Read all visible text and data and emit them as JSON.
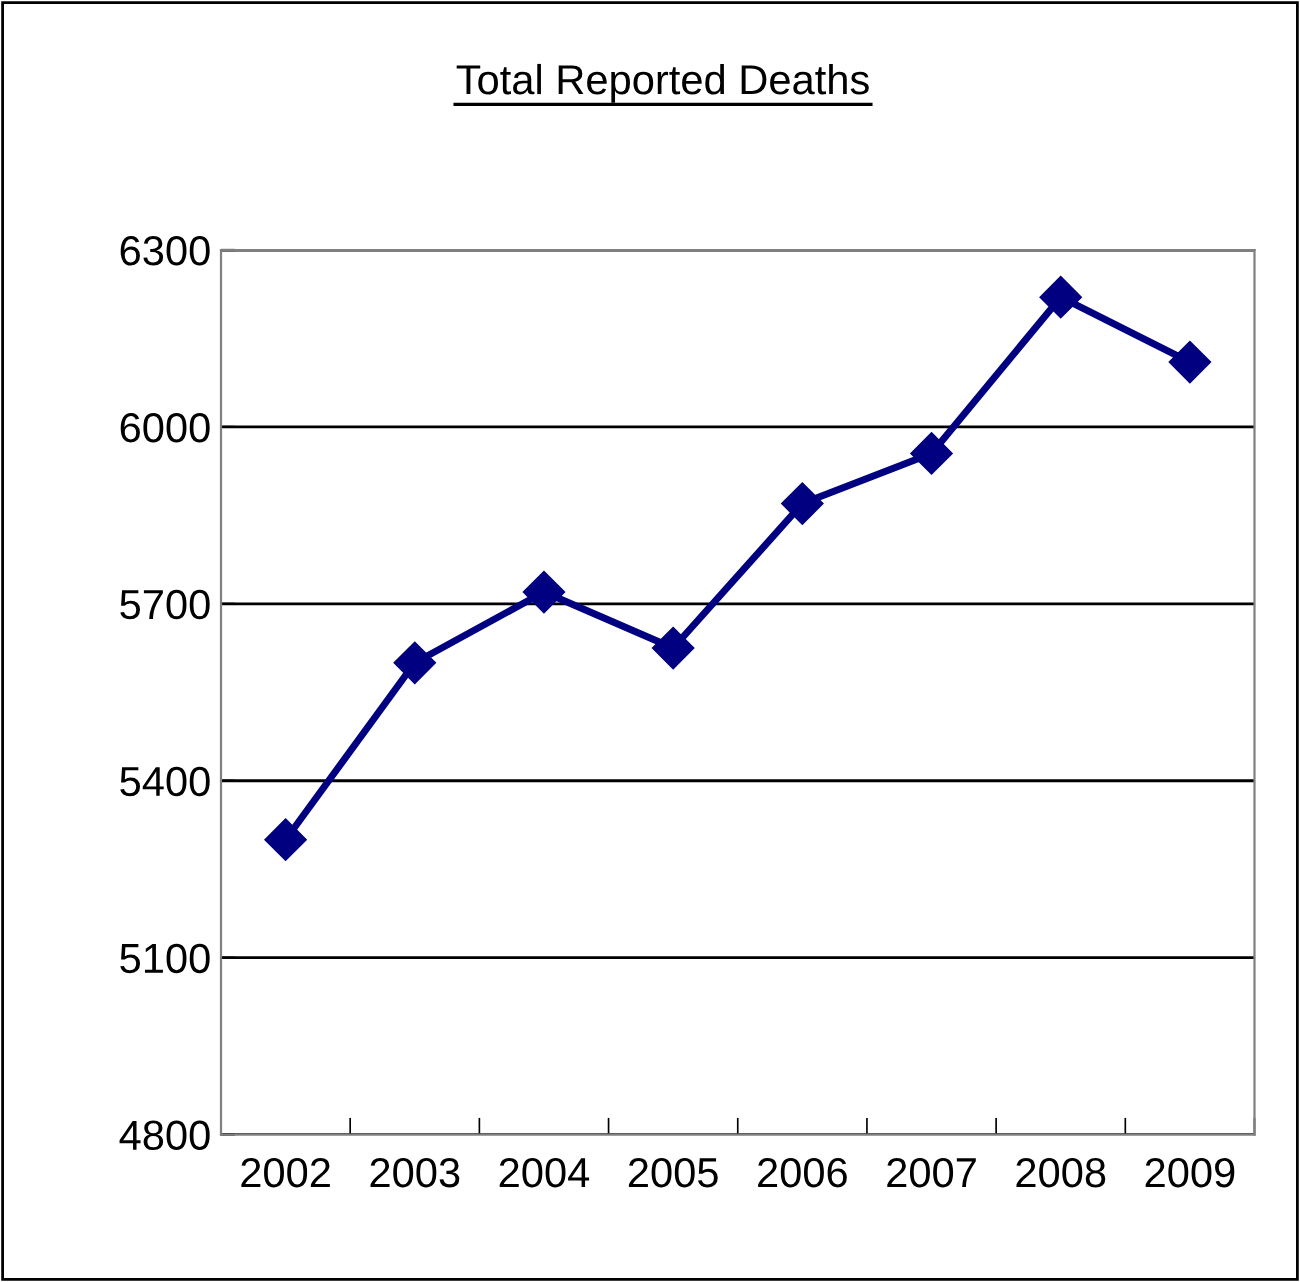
{
  "chart_data": {
    "type": "line",
    "title": "Total Reported Deaths",
    "categories": [
      "2002",
      "2003",
      "2004",
      "2005",
      "2006",
      "2007",
      "2008",
      "2009"
    ],
    "series": [
      {
        "color": "#000080",
        "values": [
          5300,
          5600,
          5720,
          5625,
          5870,
          5955,
          6220,
          6110
        ]
      }
    ],
    "ylim": [
      4800,
      6300
    ],
    "yticks": [
      4800,
      5100,
      5400,
      5700,
      6000,
      6300
    ],
    "grid": "y",
    "marker": "diamond",
    "line_style": "solid",
    "legend": false
  }
}
